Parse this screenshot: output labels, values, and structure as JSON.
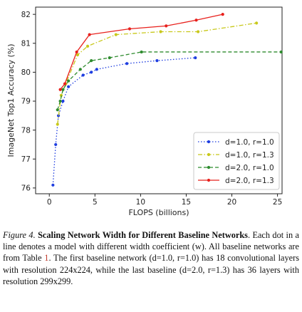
{
  "chart_data": {
    "type": "line",
    "xlabel": "FLOPS (billions)",
    "ylabel": "ImageNet Top1 Accuracy (%)",
    "xlim": [
      -1.5,
      25.5
    ],
    "ylim": [
      75.8,
      82.25
    ],
    "xticks": [
      0,
      5,
      10,
      15,
      20,
      25
    ],
    "yticks": [
      76,
      77,
      78,
      79,
      80,
      81,
      82
    ],
    "grid": false,
    "legend_position": "lower-right",
    "series": [
      {
        "name": "d=1.0, r=1.0",
        "color": "#1f3ee0",
        "dash": "dotted",
        "x": [
          0.4,
          0.7,
          1.0,
          1.5,
          2.1,
          3.7,
          4.6,
          5.2,
          8.5,
          11.8,
          16.0
        ],
        "y": [
          76.1,
          77.5,
          78.5,
          79.0,
          79.5,
          79.9,
          80.0,
          80.1,
          80.3,
          80.4,
          80.5
        ]
      },
      {
        "name": "d=1.0, r=1.3",
        "color": "#c8c81a",
        "dash": "dashdot",
        "x": [
          0.9,
          1.3,
          1.8,
          3.1,
          4.2,
          7.3,
          12.2,
          16.3,
          22.7
        ],
        "y": [
          78.2,
          79.2,
          79.6,
          80.6,
          80.9,
          81.3,
          81.4,
          81.4,
          81.7
        ]
      },
      {
        "name": "d=2.0, r=1.0",
        "color": "#2f8c2f",
        "dash": "dashed",
        "x": [
          0.9,
          1.2,
          1.5,
          2.1,
          3.4,
          4.6,
          6.6,
          10.1,
          25.4
        ],
        "y": [
          78.7,
          79.0,
          79.4,
          79.7,
          80.1,
          80.4,
          80.5,
          80.7,
          80.7
        ]
      },
      {
        "name": "d=2.0, r=1.3",
        "color": "#e8201c",
        "dash": "solid",
        "x": [
          1.2,
          1.7,
          3.0,
          4.4,
          8.8,
          12.8,
          16.1,
          19.0
        ],
        "y": [
          79.4,
          79.6,
          80.7,
          81.3,
          81.5,
          81.6,
          81.8,
          82.0
        ]
      }
    ],
    "legend_labels": [
      "d=1.0, r=1.0",
      "d=1.0, r=1.3",
      "d=2.0, r=1.0",
      "d=2.0, r=1.3"
    ]
  },
  "caption": {
    "label": "Figure 4.",
    "title": "Scaling Network Width for Different Baseline Networks",
    "body_1": ". Each dot in a line denotes a model with different width coefficient (w). All baseline networks are from Table ",
    "table_ref": "1",
    "body_2": ". The first baseline network (d=1.0, r=1.0) has 18 convolutional layers with resolution 224x224, while the last baseline (d=2.0, r=1.3) has 36 layers with resolution 299x299."
  }
}
